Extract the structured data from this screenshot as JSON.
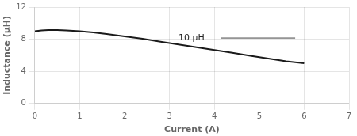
{
  "chart_data": {
    "type": "line",
    "xlabel": "Current (A)",
    "ylabel": "Inductance (μH)",
    "x": [
      0.0,
      0.15,
      0.3,
      0.5,
      0.7,
      1.0,
      1.3,
      1.6,
      2.0,
      2.4,
      2.8,
      3.2,
      3.6,
      4.0,
      4.4,
      4.8,
      5.2,
      5.6,
      6.0
    ],
    "values": [
      9.0,
      9.1,
      9.15,
      9.15,
      9.1,
      9.0,
      8.85,
      8.65,
      8.35,
      8.05,
      7.7,
      7.35,
      7.0,
      6.65,
      6.3,
      5.95,
      5.6,
      5.25,
      5.0
    ],
    "color": "#1a1a1a",
    "annotations": [
      {
        "text": "10 μH",
        "x": 3.2,
        "y": 8.15,
        "line_x": [
          4.15,
          5.8
        ]
      }
    ],
    "xlim": [
      0,
      7
    ],
    "ylim": [
      0,
      12
    ],
    "xticks": [
      0,
      1,
      2,
      3,
      4,
      5,
      6,
      7
    ],
    "yticks": [
      0,
      4,
      8,
      12
    ],
    "grid": true
  }
}
